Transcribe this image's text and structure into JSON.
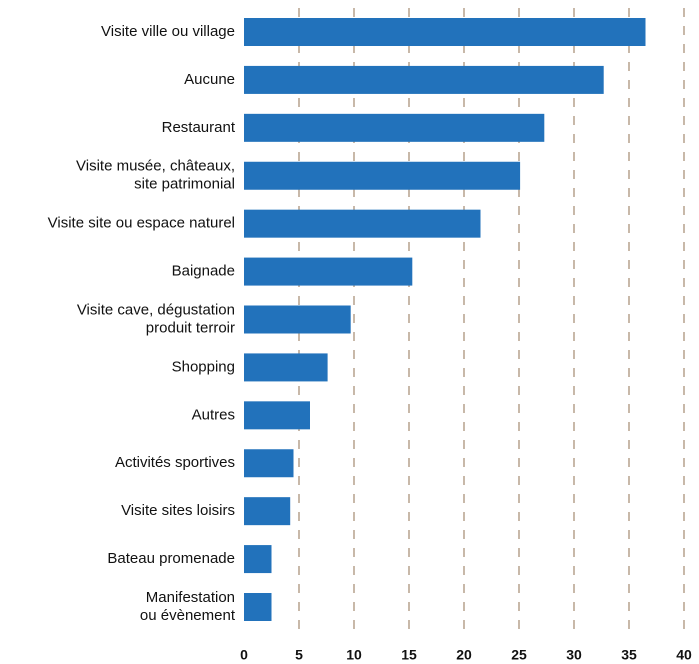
{
  "chart_data": {
    "type": "barh",
    "categories": [
      [
        "Visite ville ou village"
      ],
      [
        "Aucune"
      ],
      [
        "Restaurant"
      ],
      [
        "Visite musée, châteaux,",
        "site patrimonial"
      ],
      [
        "Visite site ou espace naturel"
      ],
      [
        "Baignade"
      ],
      [
        "Visite cave, dégustation",
        "produit terroir"
      ],
      [
        "Shopping"
      ],
      [
        "Autres"
      ],
      [
        "Activités sportives"
      ],
      [
        "Visite sites loisirs"
      ],
      [
        "Bateau promenade"
      ],
      [
        "Manifestation",
        "ou évènement"
      ]
    ],
    "values": [
      36.5,
      32.7,
      27.3,
      25.1,
      21.5,
      15.3,
      9.7,
      7.6,
      6.0,
      4.5,
      4.2,
      2.5,
      2.5
    ],
    "color": "#2272bb",
    "xlim": [
      0,
      40
    ],
    "xticks": [
      0,
      5,
      10,
      15,
      20,
      25,
      30,
      35,
      40
    ],
    "grid": true,
    "grid_color": "#a38a70"
  }
}
